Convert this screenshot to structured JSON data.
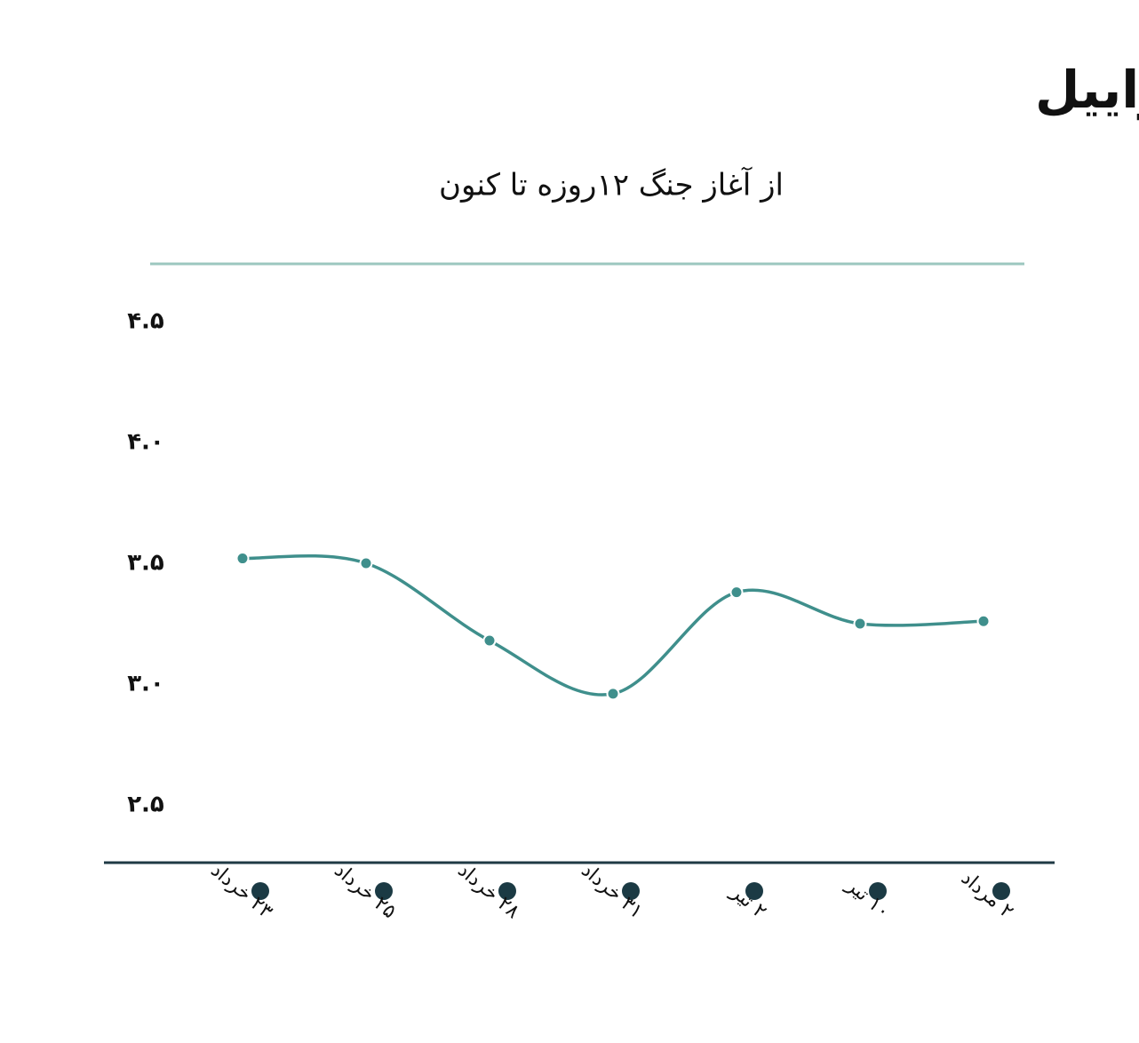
{
  "chart_data": {
    "type": "line",
    "title": "ارزش دلار در مقابل «شکل» اسراییل",
    "subtitle": "از آغاز جنگ ۱۲روزه تا کنون",
    "categories": [
      "۲۳ خرداد",
      "۲۵ خرداد",
      "۲۸ خرداد",
      "۳۱ خرداد",
      "۲ تیر",
      "۱۰ تیر",
      "۲ مرداد"
    ],
    "series": [
      {
        "color": "#3f8f8c",
        "values": [
          3.52,
          3.5,
          3.18,
          2.96,
          3.38,
          3.25,
          3.26
        ]
      }
    ],
    "ylim": [
      2.25,
      4.75
    ],
    "yticks": [
      {
        "value": 4.5,
        "label": "۴.۵"
      },
      {
        "value": 4.0,
        "label": "۴.۰"
      },
      {
        "value": 3.5,
        "label": "۳.۵"
      },
      {
        "value": 3.0,
        "label": "۳.۰"
      },
      {
        "value": 2.5,
        "label": "۲.۵"
      }
    ]
  }
}
